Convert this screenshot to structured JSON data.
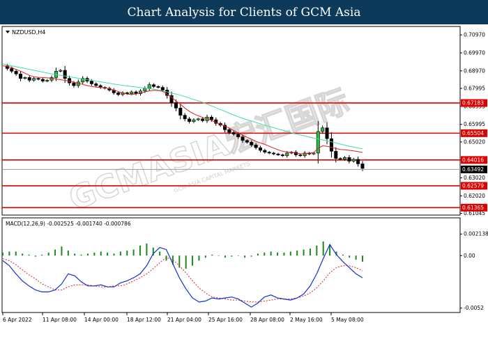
{
  "header": {
    "title": "Chart Analysis for Clients of GCM Asia"
  },
  "watermark": {
    "text": "GCMASIA宏汇国际",
    "subtext": "GCM ASIA CAPITAL MARKETS"
  },
  "chart_data": {
    "type": "candlestick",
    "symbol": "NZDUSD,H4",
    "y_range": [
      0.6103,
      0.714
    ],
    "y_ticks": [
      "0.70970",
      "0.69970",
      "0.68970",
      "0.67995",
      "0.66995",
      "0.65995",
      "0.65020",
      "0.64020",
      "0.63020",
      "0.62020",
      "0.61045"
    ],
    "x_ticks": [
      "6 Apr 2022",
      "11 Apr 08:00",
      "14 Apr 00:00",
      "18 Apr 12:00",
      "21 Apr 04:00",
      "25 Apr 16:00",
      "28 Apr 08:00",
      "2 May 16:00",
      "5 May 08:00"
    ],
    "horizontal_levels": [
      {
        "value": 0.67183,
        "label": "0.67183",
        "color": "#e00000"
      },
      {
        "value": 0.65504,
        "label": "0.65504",
        "color": "#e00000"
      },
      {
        "value": 0.64016,
        "label": "0.64016",
        "color": "#e00000"
      },
      {
        "value": 0.62579,
        "label": "0.62579",
        "color": "#e00000"
      },
      {
        "value": 0.61365,
        "label": "0.61365",
        "color": "#e00000"
      }
    ],
    "current_price": "0.63492",
    "candle_path": [
      0.6925,
      0.691,
      0.6895,
      0.688,
      0.6855,
      0.686,
      0.6845,
      0.6855,
      0.685,
      0.684,
      0.6845,
      0.686,
      0.6895,
      0.69,
      0.6855,
      0.683,
      0.6815,
      0.6835,
      0.6855,
      0.684,
      0.6825,
      0.6815,
      0.6805,
      0.68,
      0.679,
      0.6775,
      0.6765,
      0.6775,
      0.677,
      0.678,
      0.677,
      0.6785,
      0.68,
      0.682,
      0.681,
      0.6805,
      0.679,
      0.676,
      0.672,
      0.669,
      0.665,
      0.663,
      0.6615,
      0.6625,
      0.663,
      0.662,
      0.664,
      0.6625,
      0.6605,
      0.6595,
      0.657,
      0.6555,
      0.6545,
      0.653,
      0.651,
      0.65,
      0.6485,
      0.647,
      0.6455,
      0.6445,
      0.644,
      0.6435,
      0.643,
      0.6425,
      0.644,
      0.6445,
      0.643,
      0.6425,
      0.644,
      0.6435,
      0.644,
      0.656,
      0.658,
      0.652,
      0.645,
      0.641,
      0.6405,
      0.6415,
      0.6395,
      0.6405,
      0.638,
      0.6355
    ],
    "sma_fast_path": [
      0.6925,
      0.6922,
      0.6915,
      0.6905,
      0.6895,
      0.6884,
      0.6872,
      0.6864,
      0.6861,
      0.686,
      0.6858,
      0.6856,
      0.6852,
      0.6848,
      0.6844,
      0.684,
      0.6834,
      0.6828,
      0.6822,
      0.6815,
      0.681,
      0.6806,
      0.6804,
      0.6803,
      0.6797,
      0.679,
      0.6782,
      0.6774,
      0.6768,
      0.6765,
      0.6769,
      0.6774,
      0.678,
      0.6786,
      0.6789,
      0.6788,
      0.6783,
      0.6768,
      0.675,
      0.673,
      0.6712,
      0.669,
      0.6672,
      0.6658,
      0.6647,
      0.6638,
      0.6632,
      0.6622,
      0.661,
      0.66,
      0.659,
      0.6579,
      0.6565,
      0.6552,
      0.654,
      0.6528,
      0.6517,
      0.6505,
      0.6496,
      0.6488,
      0.6478,
      0.6468,
      0.6458,
      0.645,
      0.6446,
      0.6443,
      0.644,
      0.6437,
      0.6436,
      0.644,
      0.6442,
      0.6466,
      0.648,
      0.6478,
      0.6471,
      0.6465,
      0.646,
      0.6458,
      0.6455,
      0.6452,
      0.6448,
      0.6443
    ],
    "sma_slow_path": [
      0.6935,
      0.693,
      0.6925,
      0.692,
      0.6915,
      0.691,
      0.6905,
      0.69,
      0.6895,
      0.689,
      0.6885,
      0.688,
      0.6876,
      0.6872,
      0.6868,
      0.6864,
      0.686,
      0.6856,
      0.6852,
      0.6848,
      0.6844,
      0.684,
      0.6836,
      0.6832,
      0.6828,
      0.6824,
      0.682,
      0.6816,
      0.6813,
      0.681,
      0.6807,
      0.6804,
      0.6801,
      0.6798,
      0.6795,
      0.679,
      0.6785,
      0.678,
      0.6774,
      0.6768,
      0.6762,
      0.6754,
      0.6746,
      0.6738,
      0.673,
      0.6722,
      0.6712,
      0.6702,
      0.6692,
      0.6682,
      0.6672,
      0.6662,
      0.6652,
      0.6642,
      0.6633,
      0.6625,
      0.6618,
      0.661,
      0.6602,
      0.6595,
      0.6588,
      0.6581,
      0.6574,
      0.6567,
      0.656,
      0.6553,
      0.6547,
      0.6541,
      0.6535,
      0.6529,
      0.6523,
      0.6518,
      0.6513,
      0.6508,
      0.6502,
      0.6496,
      0.649,
      0.6484,
      0.6478,
      0.6473,
      0.6468,
      0.6463
    ],
    "colors": {
      "fast_ma": "#e02020",
      "slow_ma": "#40e0a0",
      "levels": "#e00000",
      "macd_hist": "#1a8a1a",
      "macd_main": "#1030d0",
      "macd_signal": "#e02020"
    },
    "macd": {
      "label": "MACD(12,26,9) -0.002525 -0.001740 -0.000786",
      "y_range": [
        -0.0055,
        0.0025
      ],
      "y_ticks": [
        "0.002138",
        "0.00",
        "-0.0052"
      ],
      "main_path": [
        -0.0005,
        -0.001,
        -0.0018,
        -0.0025,
        -0.003,
        -0.0034,
        -0.0036,
        -0.0036,
        -0.0034,
        -0.0028,
        -0.0018,
        -0.002,
        -0.0026,
        -0.003,
        -0.003,
        -0.0029,
        -0.0031,
        -0.0031,
        -0.0027,
        -0.0025,
        -0.0022,
        -0.0018,
        -0.001,
        0.0002,
        0.0008,
        0.0006,
        -0.0008,
        -0.0022,
        -0.0033,
        -0.0042,
        -0.0046,
        -0.0045,
        -0.0042,
        -0.0043,
        -0.0042,
        -0.0041,
        -0.0043,
        -0.0047,
        -0.0051,
        -0.0047,
        -0.0041,
        -0.0039,
        -0.0042,
        -0.0043,
        -0.0044,
        -0.0042,
        -0.0038,
        -0.003,
        -0.0018,
        -0.0003,
        0.0011,
        0.0001,
        -0.0006,
        -0.0012,
        -0.0018,
        -0.0022
      ],
      "signal_path": [
        -0.0003,
        -0.0005,
        -0.0009,
        -0.0014,
        -0.0019,
        -0.0023,
        -0.0028,
        -0.0031,
        -0.0034,
        -0.0034,
        -0.0031,
        -0.0029,
        -0.0029,
        -0.0029,
        -0.003,
        -0.0031,
        -0.0031,
        -0.003,
        -0.003,
        -0.0028,
        -0.0025,
        -0.0022,
        -0.0018,
        -0.0013,
        -0.0007,
        -0.0002,
        -0.0004,
        -0.001,
        -0.0017,
        -0.0025,
        -0.0032,
        -0.0037,
        -0.0041,
        -0.0042,
        -0.0043,
        -0.0044,
        -0.0044,
        -0.0045,
        -0.0046,
        -0.0046,
        -0.0045,
        -0.0044,
        -0.0043,
        -0.0043,
        -0.0043,
        -0.0042,
        -0.004,
        -0.0037,
        -0.0032,
        -0.0025,
        -0.0017,
        -0.0012,
        -0.001,
        -0.001,
        -0.0012,
        -0.0015
      ],
      "hist_path": [
        0.0003,
        0.0004,
        0.0004,
        0.0002,
        0.0001,
        -0.0001,
        0.0001,
        0.0003,
        0.0006,
        0.0009,
        0.0005,
        0.0002,
        0.0001,
        0.0002,
        0.0003,
        0.0004,
        0.0003,
        0.0002,
        0.0004,
        0.0005,
        0.0006,
        0.001,
        0.0012,
        0.0008,
        0.0004,
        -0.0005,
        -0.0009,
        -0.0012,
        -0.0013,
        -0.001,
        -0.0005,
        -0.0002,
        0.0001,
        0.0,
        -0.0002,
        -0.0001,
        0.0,
        -0.0002,
        -0.0001,
        0.0002,
        0.0003,
        0.0004,
        0.0003,
        0.0003,
        0.0004,
        0.0005,
        0.0006,
        0.0007,
        0.001,
        0.0014,
        0.0011,
        0.0004,
        0.0001,
        -0.0002,
        -0.0004,
        -0.0006
      ]
    }
  }
}
